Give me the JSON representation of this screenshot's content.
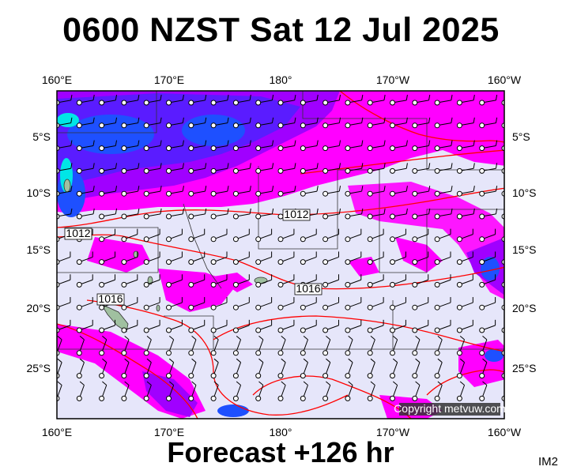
{
  "title": "0600 NZST Sat 12 Jul 2025",
  "footer": "Forecast +126 hr",
  "image_code": "IM2",
  "copyright": "Copyright metvuw.com",
  "top_lon_labels": [
    "160°E",
    "170°E",
    "180°",
    "170°W",
    "160°W"
  ],
  "bottom_lon_labels": [
    "160°E",
    "170°E",
    "180°",
    "170°W",
    "160°W"
  ],
  "left_lat_labels": [
    "5°S",
    "10°S",
    "15°S",
    "20°S",
    "25°S"
  ],
  "right_lat_labels": [
    "5°S",
    "10°S",
    "15°S",
    "20°S",
    "25°S"
  ],
  "isobar_labels": [
    "1012",
    "1012",
    "1016",
    "1016"
  ],
  "colors": {
    "background": "#e6e6fa",
    "rain_light": "#ff00ff",
    "rain_mid": "#a000ff",
    "rain_heavy": "#5a1cff",
    "rain_blue": "#1e50ff",
    "rain_cyan": "#00e6e6",
    "isobar": "#ff0000"
  }
}
